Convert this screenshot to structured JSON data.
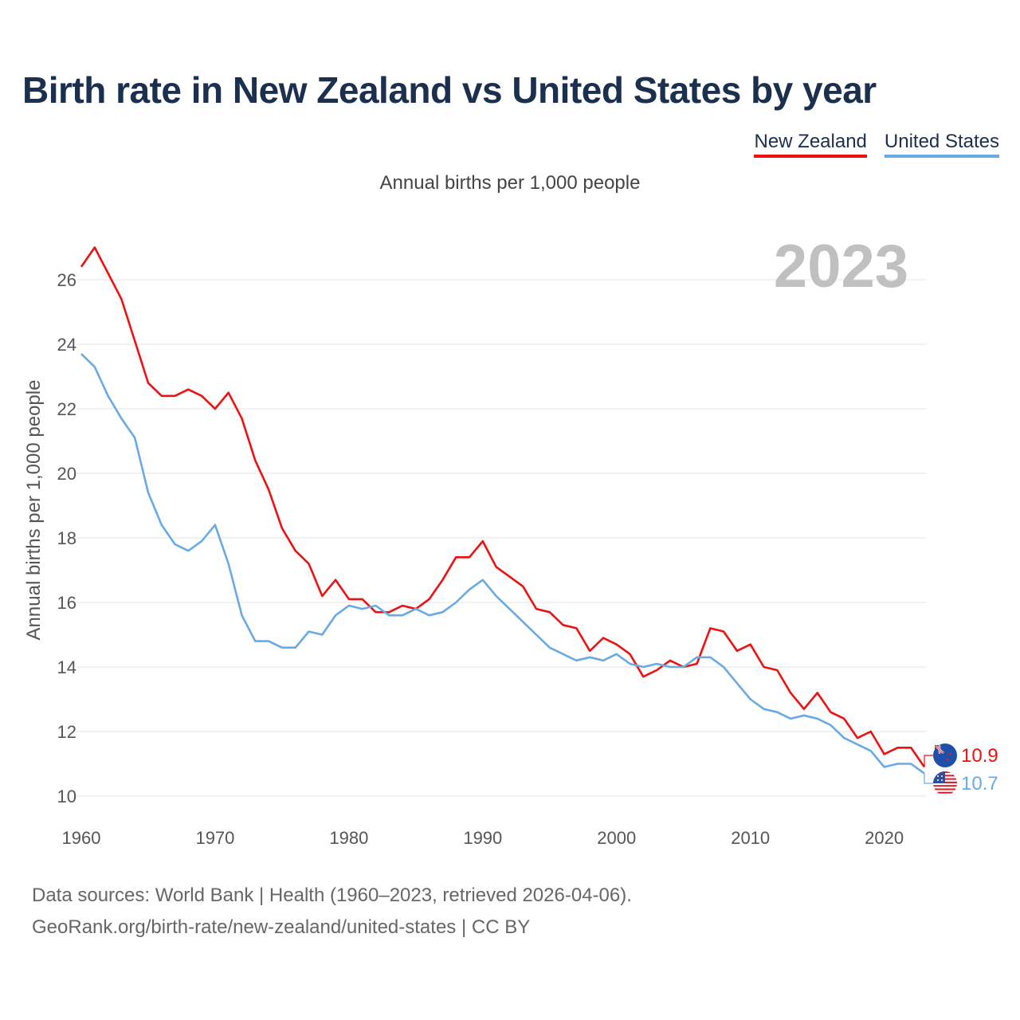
{
  "chart_data": {
    "type": "line",
    "title": "Birth rate in New Zealand vs United States by year",
    "subtitle": "Annual births per 1,000 people",
    "ylabel": "Annual births per 1,000 people",
    "xlabel": "",
    "year_label": "2023",
    "xlim": [
      1960,
      2023
    ],
    "ylim": [
      9.5,
      27.5
    ],
    "x_ticks": [
      1960,
      1970,
      1980,
      1990,
      2000,
      2010,
      2020
    ],
    "y_ticks": [
      10,
      12,
      14,
      16,
      18,
      20,
      22,
      24,
      26
    ],
    "x": [
      1960,
      1961,
      1962,
      1963,
      1964,
      1965,
      1966,
      1967,
      1968,
      1969,
      1970,
      1971,
      1972,
      1973,
      1974,
      1975,
      1976,
      1977,
      1978,
      1979,
      1980,
      1981,
      1982,
      1983,
      1984,
      1985,
      1986,
      1987,
      1988,
      1989,
      1990,
      1991,
      1992,
      1993,
      1994,
      1995,
      1996,
      1997,
      1998,
      1999,
      2000,
      2001,
      2002,
      2003,
      2004,
      2005,
      2006,
      2007,
      2008,
      2009,
      2010,
      2011,
      2012,
      2013,
      2014,
      2015,
      2016,
      2017,
      2018,
      2019,
      2020,
      2021,
      2022,
      2023
    ],
    "series": [
      {
        "name": "New Zealand",
        "color": "#ee1111",
        "end_label": "10.9",
        "values": [
          26.4,
          27.0,
          26.2,
          25.4,
          24.1,
          22.8,
          22.4,
          22.4,
          22.6,
          22.4,
          22.0,
          22.5,
          21.7,
          20.4,
          19.5,
          18.3,
          17.6,
          17.2,
          16.2,
          16.7,
          16.1,
          16.1,
          15.7,
          15.7,
          15.9,
          15.8,
          16.1,
          16.7,
          17.4,
          17.4,
          17.9,
          17.1,
          16.8,
          16.5,
          15.8,
          15.7,
          15.3,
          15.2,
          14.5,
          14.9,
          14.7,
          14.4,
          13.7,
          13.9,
          14.2,
          14.0,
          14.1,
          15.2,
          15.1,
          14.5,
          14.7,
          14.0,
          13.9,
          13.2,
          12.7,
          13.2,
          12.6,
          12.4,
          11.8,
          12.0,
          11.3,
          11.5,
          11.5,
          10.9
        ]
      },
      {
        "name": "United States",
        "color": "#6aaae4",
        "end_label": "10.7",
        "values": [
          23.7,
          23.3,
          22.4,
          21.7,
          21.1,
          19.4,
          18.4,
          17.8,
          17.6,
          17.9,
          18.4,
          17.2,
          15.6,
          14.8,
          14.8,
          14.6,
          14.6,
          15.1,
          15.0,
          15.6,
          15.9,
          15.8,
          15.9,
          15.6,
          15.6,
          15.8,
          15.6,
          15.7,
          16.0,
          16.4,
          16.7,
          16.2,
          15.8,
          15.4,
          15.0,
          14.6,
          14.4,
          14.2,
          14.3,
          14.2,
          14.4,
          14.1,
          14.0,
          14.1,
          14.0,
          14.0,
          14.3,
          14.3,
          14.0,
          13.5,
          13.0,
          12.7,
          12.6,
          12.4,
          12.5,
          12.4,
          12.2,
          11.8,
          11.6,
          11.4,
          10.9,
          11.0,
          11.0,
          10.7
        ]
      }
    ],
    "footer_lines": [
      "Data sources: World Bank | Health (1960–2023, retrieved 2026-04-06).",
      "GeoRank.org/birth-rate/new-zealand/united-states | CC BY"
    ]
  },
  "legend": {
    "items": [
      {
        "label": "New Zealand",
        "color": "#ee1111"
      },
      {
        "label": "United States",
        "color": "#6aaae4"
      }
    ]
  },
  "icons": {
    "nz": "new-zealand-flag-icon",
    "us": "united-states-flag-icon"
  }
}
